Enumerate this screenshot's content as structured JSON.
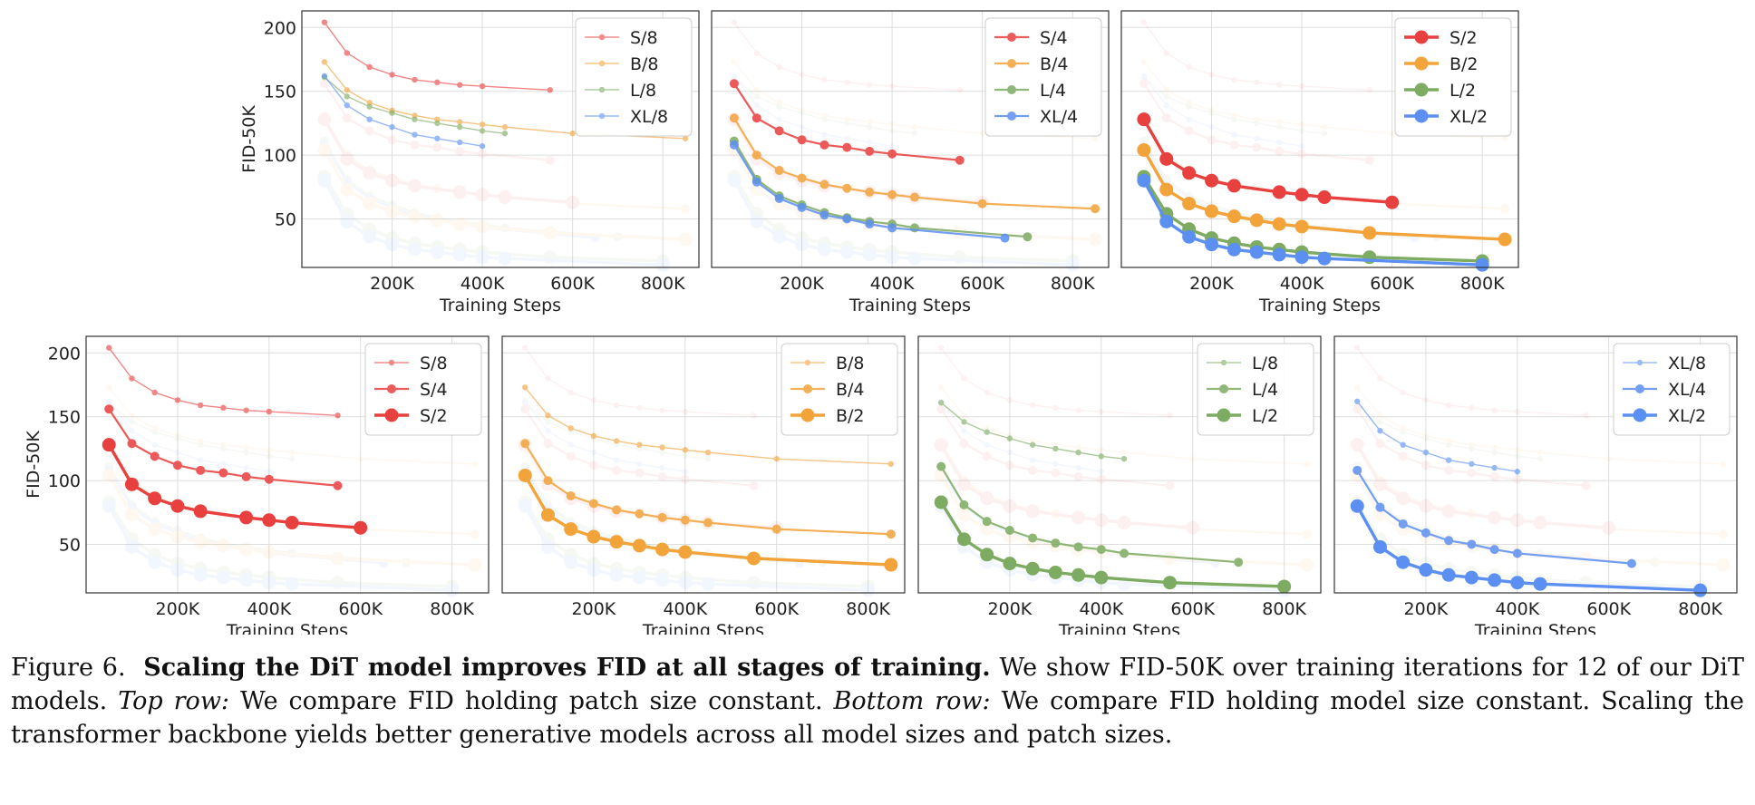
{
  "colors": {
    "S": "#e8403f",
    "B": "#f2a33a",
    "L": "#7dab62",
    "XL": "#5b8ff2",
    "grid": "#dddddd",
    "frame": "#333333"
  },
  "chart_data": [
    {
      "type": "line",
      "panel": "top-1",
      "xlabel": "Training Steps",
      "ylabel": "FID-50K",
      "xticks": [
        "200K",
        "400K",
        "600K",
        "800K"
      ],
      "yticks": [
        "50",
        "100",
        "150",
        "200"
      ],
      "xlim": [
        0,
        880000
      ],
      "ylim": [
        12,
        213
      ],
      "legend_position": "top-right",
      "series": [
        {
          "name": "S/8",
          "model": "S",
          "size": 1,
          "x": [
            50000,
            100000,
            150000,
            200000,
            250000,
            300000,
            350000,
            400000,
            550000
          ],
          "values": [
            204,
            180,
            169,
            163,
            159,
            157,
            155,
            154,
            151
          ]
        },
        {
          "name": "B/8",
          "model": "B",
          "size": 1,
          "x": [
            50000,
            100000,
            150000,
            200000,
            250000,
            300000,
            350000,
            400000,
            450000,
            600000,
            850000
          ],
          "values": [
            173,
            151,
            141,
            135,
            131,
            128,
            126,
            124,
            122,
            117,
            113
          ]
        },
        {
          "name": "L/8",
          "model": "L",
          "size": 1,
          "x": [
            50000,
            100000,
            150000,
            200000,
            250000,
            300000,
            350000,
            400000,
            450000
          ],
          "values": [
            161,
            146,
            138,
            133,
            128,
            125,
            122,
            119,
            117
          ]
        },
        {
          "name": "XL/8",
          "model": "XL",
          "size": 1,
          "x": [
            50000,
            100000,
            150000,
            200000,
            250000,
            300000,
            350000,
            400000
          ],
          "values": [
            162,
            139,
            128,
            122,
            116,
            113,
            110,
            107
          ]
        }
      ]
    },
    {
      "type": "line",
      "panel": "top-2",
      "xlabel": "Training Steps",
      "ylabel": "",
      "xticks": [
        "200K",
        "400K",
        "600K",
        "800K"
      ],
      "yticks": [],
      "xlim": [
        0,
        880000
      ],
      "ylim": [
        12,
        213
      ],
      "legend_position": "top-right",
      "series": [
        {
          "name": "S/4",
          "model": "S",
          "size": 2,
          "x": [
            50000,
            100000,
            150000,
            200000,
            250000,
            300000,
            350000,
            400000,
            550000
          ],
          "values": [
            156,
            129,
            119,
            112,
            108,
            106,
            103,
            101,
            96
          ]
        },
        {
          "name": "B/4",
          "model": "B",
          "size": 2,
          "x": [
            50000,
            100000,
            150000,
            200000,
            250000,
            300000,
            350000,
            400000,
            450000,
            600000,
            850000
          ],
          "values": [
            129,
            100,
            88,
            82,
            77,
            74,
            71,
            69,
            67,
            62,
            58
          ]
        },
        {
          "name": "L/4",
          "model": "L",
          "size": 2,
          "x": [
            50000,
            100000,
            150000,
            200000,
            250000,
            300000,
            350000,
            400000,
            450000,
            700000
          ],
          "values": [
            111,
            81,
            68,
            61,
            55,
            51,
            48,
            46,
            43,
            36
          ]
        },
        {
          "name": "XL/4",
          "model": "XL",
          "size": 2,
          "x": [
            50000,
            100000,
            150000,
            200000,
            250000,
            300000,
            350000,
            400000,
            650000
          ],
          "values": [
            108,
            79,
            66,
            59,
            53,
            50,
            46,
            43,
            35
          ]
        }
      ]
    },
    {
      "type": "line",
      "panel": "top-3",
      "xlabel": "Training Steps",
      "ylabel": "",
      "xticks": [
        "200K",
        "400K",
        "600K",
        "800K"
      ],
      "yticks": [],
      "xlim": [
        0,
        880000
      ],
      "ylim": [
        12,
        213
      ],
      "legend_position": "top-right",
      "series": [
        {
          "name": "S/2",
          "model": "S",
          "size": 3,
          "x": [
            50000,
            100000,
            150000,
            200000,
            250000,
            350000,
            400000,
            450000,
            600000
          ],
          "values": [
            128,
            97,
            86,
            80,
            76,
            71,
            69,
            67,
            63
          ]
        },
        {
          "name": "B/2",
          "model": "B",
          "size": 3,
          "x": [
            50000,
            100000,
            150000,
            200000,
            250000,
            300000,
            350000,
            400000,
            550000,
            850000
          ],
          "values": [
            104,
            73,
            62,
            56,
            52,
            49,
            46,
            44,
            39,
            34
          ]
        },
        {
          "name": "L/2",
          "model": "L",
          "size": 3,
          "x": [
            50000,
            100000,
            150000,
            200000,
            250000,
            300000,
            350000,
            400000,
            550000,
            800000
          ],
          "values": [
            83,
            54,
            42,
            35,
            31,
            28,
            26,
            24,
            20,
            17
          ]
        },
        {
          "name": "XL/2",
          "model": "XL",
          "size": 3,
          "x": [
            50000,
            100000,
            150000,
            200000,
            250000,
            300000,
            350000,
            400000,
            450000,
            800000
          ],
          "values": [
            80,
            48,
            36,
            30,
            26,
            24,
            22,
            20,
            19,
            14
          ]
        }
      ]
    },
    {
      "type": "line",
      "panel": "bottom-1",
      "xlabel": "Training Steps",
      "ylabel": "FID-50K",
      "xticks": [
        "200K",
        "400K",
        "600K",
        "800K"
      ],
      "yticks": [
        "50",
        "100",
        "150",
        "200"
      ],
      "xlim": [
        0,
        880000
      ],
      "ylim": [
        12,
        213
      ],
      "legend_position": "top-right",
      "series": [
        {
          "name": "S/8",
          "model": "S",
          "size": 1,
          "x": [
            50000,
            100000,
            150000,
            200000,
            250000,
            300000,
            350000,
            400000,
            550000
          ],
          "values": [
            204,
            180,
            169,
            163,
            159,
            157,
            155,
            154,
            151
          ]
        },
        {
          "name": "S/4",
          "model": "S",
          "size": 2,
          "x": [
            50000,
            100000,
            150000,
            200000,
            250000,
            300000,
            350000,
            400000,
            550000
          ],
          "values": [
            156,
            129,
            119,
            112,
            108,
            106,
            103,
            101,
            96
          ]
        },
        {
          "name": "S/2",
          "model": "S",
          "size": 3,
          "x": [
            50000,
            100000,
            150000,
            200000,
            250000,
            350000,
            400000,
            450000,
            600000
          ],
          "values": [
            128,
            97,
            86,
            80,
            76,
            71,
            69,
            67,
            63
          ]
        }
      ]
    },
    {
      "type": "line",
      "panel": "bottom-2",
      "xlabel": "Training Steps",
      "ylabel": "",
      "xticks": [
        "200K",
        "400K",
        "600K",
        "800K"
      ],
      "yticks": [],
      "xlim": [
        0,
        880000
      ],
      "ylim": [
        12,
        213
      ],
      "legend_position": "top-right",
      "series": [
        {
          "name": "B/8",
          "model": "B",
          "size": 1,
          "x": [
            50000,
            100000,
            150000,
            200000,
            250000,
            300000,
            350000,
            400000,
            450000,
            600000,
            850000
          ],
          "values": [
            173,
            151,
            141,
            135,
            131,
            128,
            126,
            124,
            122,
            117,
            113
          ]
        },
        {
          "name": "B/4",
          "model": "B",
          "size": 2,
          "x": [
            50000,
            100000,
            150000,
            200000,
            250000,
            300000,
            350000,
            400000,
            450000,
            600000,
            850000
          ],
          "values": [
            129,
            100,
            88,
            82,
            77,
            74,
            71,
            69,
            67,
            62,
            58
          ]
        },
        {
          "name": "B/2",
          "model": "B",
          "size": 3,
          "x": [
            50000,
            100000,
            150000,
            200000,
            250000,
            300000,
            350000,
            400000,
            550000,
            850000
          ],
          "values": [
            104,
            73,
            62,
            56,
            52,
            49,
            46,
            44,
            39,
            34
          ]
        }
      ]
    },
    {
      "type": "line",
      "panel": "bottom-3",
      "xlabel": "Training Steps",
      "ylabel": "",
      "xticks": [
        "200K",
        "400K",
        "600K",
        "800K"
      ],
      "yticks": [],
      "xlim": [
        0,
        880000
      ],
      "ylim": [
        12,
        213
      ],
      "legend_position": "top-right",
      "series": [
        {
          "name": "L/8",
          "model": "L",
          "size": 1,
          "x": [
            50000,
            100000,
            150000,
            200000,
            250000,
            300000,
            350000,
            400000,
            450000
          ],
          "values": [
            161,
            146,
            138,
            133,
            128,
            125,
            122,
            119,
            117
          ]
        },
        {
          "name": "L/4",
          "model": "L",
          "size": 2,
          "x": [
            50000,
            100000,
            150000,
            200000,
            250000,
            300000,
            350000,
            400000,
            450000,
            700000
          ],
          "values": [
            111,
            81,
            68,
            61,
            55,
            51,
            48,
            46,
            43,
            36
          ]
        },
        {
          "name": "L/2",
          "model": "L",
          "size": 3,
          "x": [
            50000,
            100000,
            150000,
            200000,
            250000,
            300000,
            350000,
            400000,
            550000,
            800000
          ],
          "values": [
            83,
            54,
            42,
            35,
            31,
            28,
            26,
            24,
            20,
            17
          ]
        }
      ]
    },
    {
      "type": "line",
      "panel": "bottom-4",
      "xlabel": "Training Steps",
      "ylabel": "",
      "xticks": [
        "200K",
        "400K",
        "600K",
        "800K"
      ],
      "yticks": [],
      "xlim": [
        0,
        880000
      ],
      "ylim": [
        12,
        213
      ],
      "legend_position": "top-right",
      "series": [
        {
          "name": "XL/8",
          "model": "XL",
          "size": 1,
          "x": [
            50000,
            100000,
            150000,
            200000,
            250000,
            300000,
            350000,
            400000
          ],
          "values": [
            162,
            139,
            128,
            122,
            116,
            113,
            110,
            107
          ]
        },
        {
          "name": "XL/4",
          "model": "XL",
          "size": 2,
          "x": [
            50000,
            100000,
            150000,
            200000,
            250000,
            300000,
            350000,
            400000,
            650000
          ],
          "values": [
            108,
            79,
            66,
            59,
            53,
            50,
            46,
            43,
            35
          ]
        },
        {
          "name": "XL/2",
          "model": "XL",
          "size": 3,
          "x": [
            50000,
            100000,
            150000,
            200000,
            250000,
            300000,
            350000,
            400000,
            450000,
            800000
          ],
          "values": [
            80,
            48,
            36,
            30,
            26,
            24,
            22,
            20,
            19,
            14
          ]
        }
      ]
    }
  ],
  "caption": {
    "figure_label": "Figure 6.",
    "title": "Scaling the DiT model improves FID at all stages of training.",
    "text1": "We show FID-50K over training iterations for 12 of our DiT models.",
    "top_label": "Top row:",
    "text2": "We compare FID holding patch size constant.",
    "bottom_label": "Bottom row:",
    "text3": "We compare FID holding model size constant. Scaling the transformer backbone yields better generative models across all model sizes and patch sizes."
  }
}
